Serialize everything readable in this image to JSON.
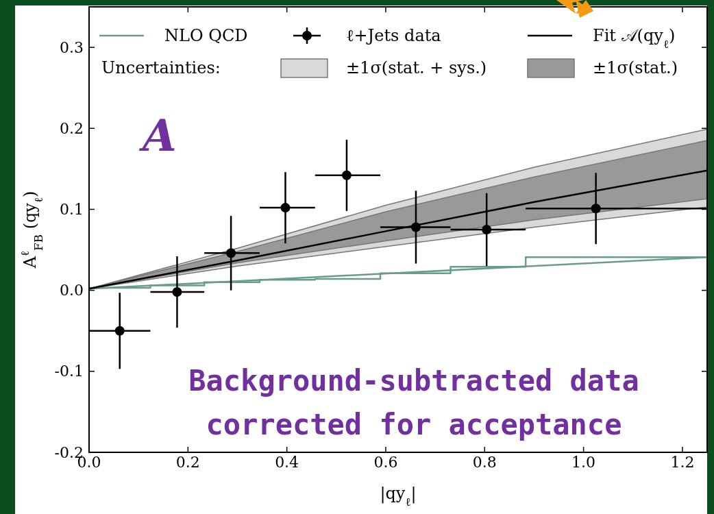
{
  "chart_data": {
    "type": "scatter",
    "xlabel": "|qy$_{ℓ}$|",
    "ylabel": "A$^{ℓ}$$_{FB}$ (qy$_{ℓ}$)",
    "legend_title": "Uncertainties:",
    "legend": "top",
    "grid": false,
    "xlim": [
      0,
      1.25
    ],
    "xticks": [
      {
        "value": 0,
        "label": "0.0"
      },
      0.2,
      0.4,
      0.6,
      0.8,
      {
        "value": 1,
        "label": "1.0"
      },
      1.2
    ],
    "ylim": [
      -0.2,
      0.35
    ],
    "yticks": [
      -0.2,
      -0.1,
      {
        "value": 0,
        "label": "0.0"
      },
      0.1,
      0.2,
      0.3
    ],
    "annotations": [
      "A",
      "Background-subtracted data\ncorrected for acceptance"
    ],
    "series": [
      {
        "name": "±1σ(stat. + sys.)",
        "type": "area",
        "color": "#d9d9d9",
        "x": [
          0,
          0.3,
          0.6,
          0.9,
          1.25
        ],
        "values": [
          null,
          null,
          null,
          null,
          null
        ],
        "lower": [
          0.002,
          0.03,
          0.054,
          0.078,
          0.103
        ],
        "upper": [
          0.002,
          0.052,
          0.105,
          0.152,
          0.199
        ]
      },
      {
        "name": "±1σ(stat.)",
        "type": "area",
        "color": "#999999",
        "x": [
          0,
          0.3,
          0.6,
          0.9,
          1.25
        ],
        "values": [
          null,
          null,
          null,
          null,
          null
        ],
        "lower": [
          0.002,
          0.034,
          0.061,
          0.087,
          0.113
        ],
        "upper": [
          0.002,
          0.048,
          0.097,
          0.14,
          0.185
        ]
      },
      {
        "name": "NLO QCD",
        "type": "step",
        "color": "#6a9e84",
        "x": [
          0,
          0.124,
          0.233,
          0.345,
          0.457,
          0.589,
          0.731,
          0.883,
          1.25
        ],
        "values": [
          0.003,
          0.006,
          0.01,
          0.013,
          0.014,
          0.021,
          0.029,
          0.041,
          0.041
        ]
      },
      {
        "type": "line",
        "color": "#6a9e84",
        "x": [
          0,
          1.25
        ],
        "values": [
          0.002,
          0.041
        ]
      },
      {
        "name": "ℓ+Jets data",
        "color": "#000000",
        "marker": "circle",
        "x": [
          0.062,
          0.178,
          0.287,
          0.397,
          0.521,
          0.661,
          0.804,
          1.025
        ],
        "values": [
          -0.05,
          -0.002,
          0.046,
          0.102,
          0.142,
          0.078,
          0.075,
          0.101
        ],
        "errors": [
          0.047,
          0.044,
          0.046,
          0.044,
          0.044,
          0.045,
          0.045,
          0.044
        ],
        "xerrors": [
          [
            0,
            0.124
          ],
          [
            0.124,
            0.233
          ],
          [
            0.233,
            0.345
          ],
          [
            0.345,
            0.457
          ],
          [
            0.457,
            0.589
          ],
          [
            0.589,
            0.731
          ],
          [
            0.731,
            0.883
          ],
          [
            0.883,
            1.25
          ]
        ]
      },
      {
        "name": "Fit 𝒜(qy$_{ℓ}$)",
        "type": "line",
        "color": "#000000",
        "x": [
          0,
          0.3,
          0.6,
          0.9,
          1.25
        ],
        "values": [
          0.002,
          0.037,
          0.073,
          0.109,
          0.148
        ]
      }
    ]
  }
}
